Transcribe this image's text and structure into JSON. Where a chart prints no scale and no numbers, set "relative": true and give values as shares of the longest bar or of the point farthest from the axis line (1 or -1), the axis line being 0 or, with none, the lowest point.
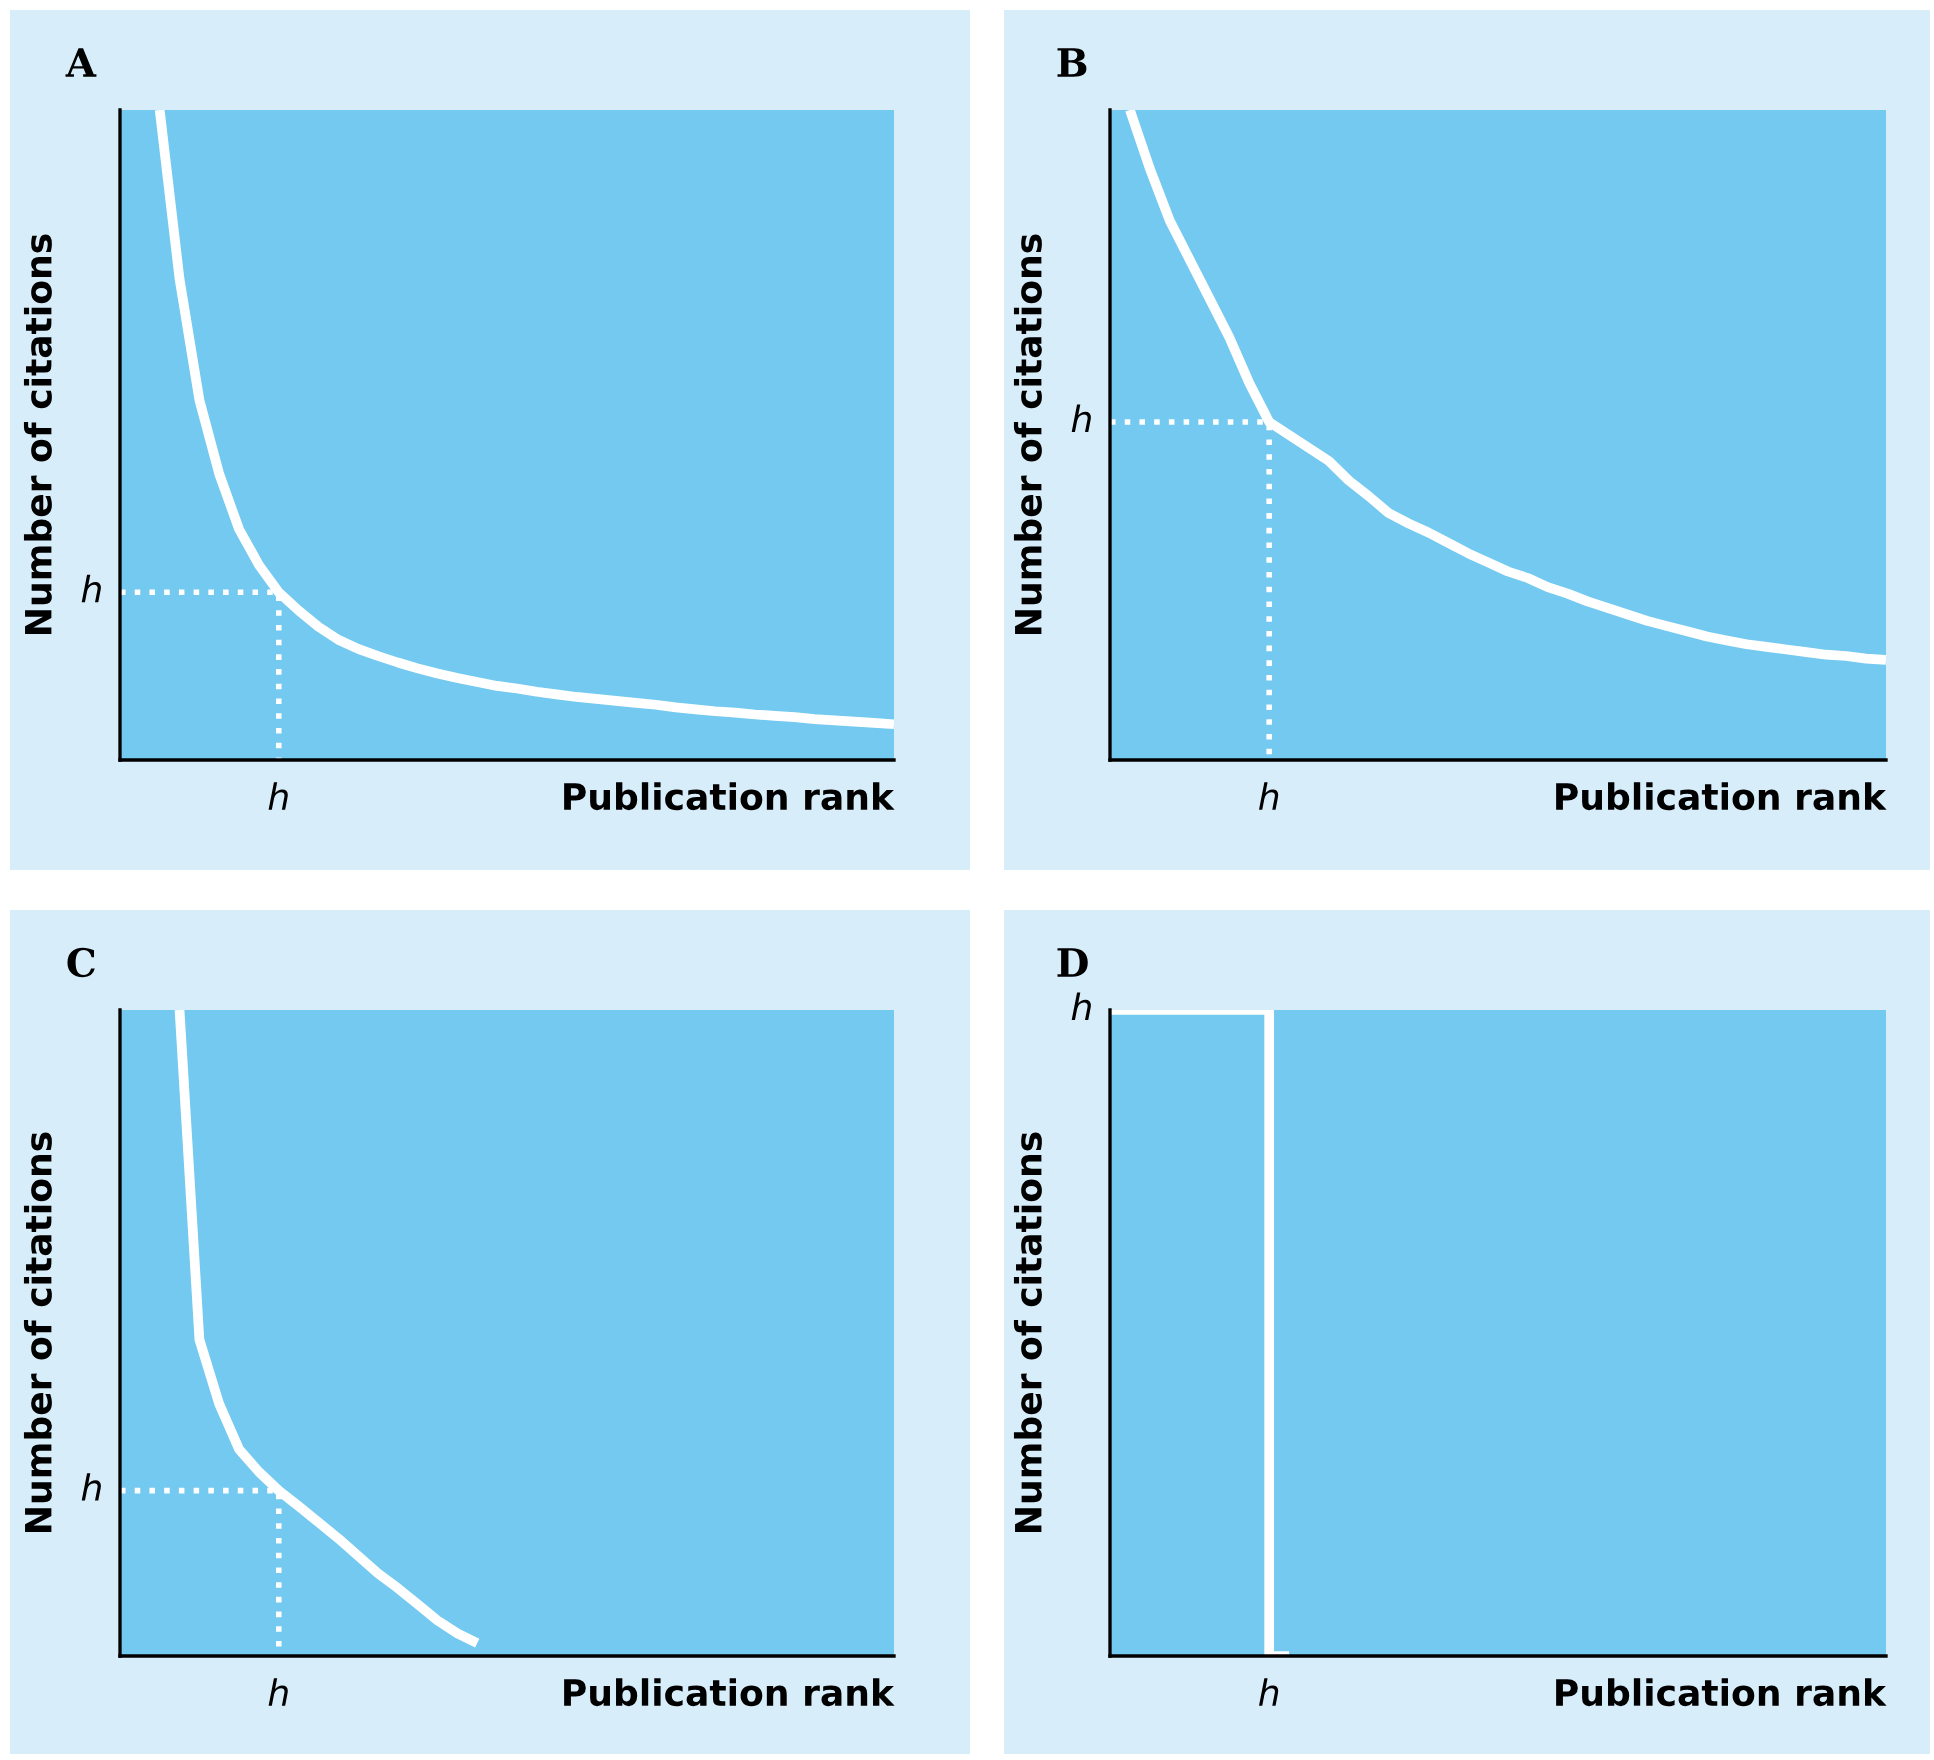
{
  "chart_data": [
    {
      "type": "line",
      "title": "A",
      "xlabel": "Publication rank",
      "ylabel": "Number of citations",
      "relative": true,
      "annotations": [
        "h",
        "h"
      ],
      "categories": [
        null,
        null,
        null,
        null,
        null,
        null,
        null,
        null,
        null,
        null,
        null,
        null,
        null,
        null,
        null,
        null,
        null,
        null,
        null,
        null,
        null,
        null,
        null,
        null,
        null,
        null,
        null,
        null,
        null,
        null,
        null,
        null,
        null,
        null,
        null,
        null,
        null,
        null,
        null,
        null
      ],
      "ref_lines": [
        {
          "axis": "y",
          "value": 0.258,
          "line_style": "dotted",
          "color": "#ffffff"
        }
      ],
      "series": [
        {
          "color": "#ffffff",
          "values": [
            null,
            null,
            1.0,
            0.74,
            0.554,
            0.44,
            0.355,
            0.3,
            0.258,
            0.23,
            0.205,
            0.185,
            0.171,
            0.16,
            0.15,
            0.141,
            0.133,
            0.126,
            0.12,
            0.114,
            0.11,
            0.105,
            0.101,
            0.097,
            0.094,
            0.091,
            0.088,
            0.085,
            0.081,
            0.078,
            0.075,
            0.073,
            0.07,
            0.068,
            0.066,
            0.063,
            0.061,
            0.059,
            0.057,
            0.055
          ]
        }
      ]
    },
    {
      "type": "line",
      "title": "B",
      "xlabel": "Publication rank",
      "ylabel": "Number of citations",
      "relative": true,
      "annotations": [
        "h",
        "h"
      ],
      "categories": [
        null,
        null,
        null,
        null,
        null,
        null,
        null,
        null,
        null,
        null,
        null,
        null,
        null,
        null,
        null,
        null,
        null,
        null,
        null,
        null,
        null,
        null,
        null,
        null,
        null,
        null,
        null,
        null,
        null,
        null,
        null,
        null,
        null,
        null,
        null,
        null,
        null,
        null,
        null,
        null
      ],
      "ref_lines": [
        {
          "axis": "y",
          "value": 0.52,
          "line_style": "dotted",
          "color": "#ffffff"
        }
      ],
      "series": [
        {
          "color": "#ffffff",
          "values": [
            null,
            1.0,
            0.91,
            0.83,
            0.77,
            0.71,
            0.65,
            0.58,
            0.52,
            0.5,
            0.48,
            0.46,
            0.43,
            0.406,
            0.38,
            0.364,
            0.35,
            0.334,
            0.318,
            0.304,
            0.29,
            0.28,
            0.266,
            0.256,
            0.244,
            0.234,
            0.224,
            0.214,
            0.206,
            0.198,
            0.19,
            0.184,
            0.178,
            0.174,
            0.17,
            0.166,
            0.162,
            0.16,
            0.156,
            0.154
          ]
        }
      ]
    },
    {
      "type": "line",
      "title": "C",
      "xlabel": "Publication rank",
      "ylabel": "Number of citations",
      "relative": true,
      "annotations": [
        "h",
        "h"
      ],
      "categories": [
        null,
        null,
        null,
        null,
        null,
        null,
        null,
        null,
        null,
        null,
        null,
        null,
        null,
        null,
        null,
        null,
        null,
        null,
        null,
        null,
        null,
        null,
        null,
        null,
        null,
        null,
        null,
        null,
        null,
        null,
        null,
        null,
        null,
        null,
        null,
        null,
        null,
        null,
        null,
        null
      ],
      "ref_lines": [
        {
          "axis": "y",
          "value": 0.256,
          "line_style": "dotted",
          "color": "#ffffff"
        }
      ],
      "series": [
        {
          "color": "#ffffff",
          "values": [
            null,
            null,
            null,
            1.0,
            0.49,
            0.39,
            0.32,
            0.285,
            0.256,
            0.232,
            0.207,
            0.182,
            0.155,
            0.128,
            0.105,
            0.08,
            0.055,
            0.035,
            0.02,
            null,
            null,
            null,
            null,
            null,
            null,
            null,
            null,
            null,
            null,
            null,
            null,
            null,
            null,
            null,
            null,
            null,
            null,
            null,
            null,
            null
          ]
        }
      ]
    },
    {
      "type": "step",
      "title": "D",
      "xlabel": "Publication rank",
      "ylabel": "Number of citations",
      "relative": true,
      "annotations": [
        "h",
        "h"
      ],
      "categories": [
        null,
        null,
        null,
        null,
        null,
        null,
        null,
        null,
        null,
        null,
        null,
        null,
        null,
        null,
        null,
        null,
        null,
        null,
        null,
        null,
        null,
        null,
        null,
        null,
        null,
        null,
        null,
        null,
        null,
        null,
        null,
        null,
        null,
        null,
        null,
        null,
        null,
        null,
        null,
        null
      ],
      "series": [
        {
          "color": "#ffffff",
          "values": [
            1.0,
            1.0,
            1.0,
            1.0,
            1.0,
            1.0,
            1.0,
            1.0,
            0,
            null,
            null,
            null,
            null,
            null,
            null,
            null,
            null,
            null,
            null,
            null,
            null,
            null,
            null,
            null,
            null,
            null,
            null,
            null,
            null,
            null,
            null,
            null,
            null,
            null,
            null,
            null,
            null,
            null,
            null,
            null
          ]
        }
      ]
    }
  ]
}
